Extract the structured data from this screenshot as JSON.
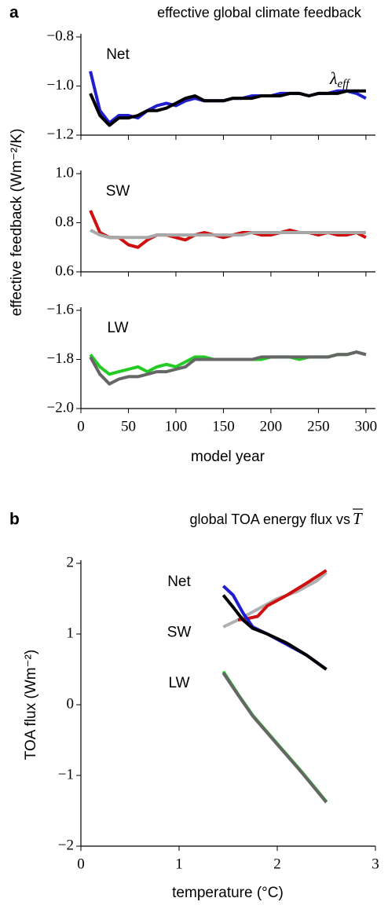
{
  "chart_data": [
    {
      "type": "line",
      "panel": "a",
      "title": "effective global climate feedback",
      "label": "Net",
      "annotation": "λ",
      "annotation_subscript": "eff",
      "x": [
        10,
        20,
        30,
        40,
        50,
        60,
        70,
        80,
        90,
        100,
        110,
        120,
        130,
        140,
        150,
        160,
        170,
        180,
        190,
        200,
        210,
        220,
        230,
        240,
        250,
        260,
        270,
        280,
        290,
        300
      ],
      "ylim": [
        -1.2,
        -0.8
      ],
      "yticks": [
        {
          "value": -1.2,
          "label": "−1.2"
        },
        {
          "value": -1.0,
          "label": "−1.0"
        },
        {
          "value": -0.8,
          "label": "−0.8"
        }
      ],
      "series": [
        {
          "color": "#1f1fd0",
          "values": [
            -0.94,
            -1.1,
            -1.15,
            -1.12,
            -1.12,
            -1.13,
            -1.1,
            -1.08,
            -1.07,
            -1.08,
            -1.06,
            -1.05,
            -1.06,
            -1.06,
            -1.06,
            -1.05,
            -1.05,
            -1.04,
            -1.04,
            -1.04,
            -1.03,
            -1.03,
            -1.03,
            -1.04,
            -1.03,
            -1.03,
            -1.02,
            -1.02,
            -1.03,
            -1.05
          ]
        },
        {
          "color": "#000000",
          "values": [
            -1.03,
            -1.12,
            -1.16,
            -1.13,
            -1.13,
            -1.12,
            -1.1,
            -1.1,
            -1.09,
            -1.07,
            -1.05,
            -1.04,
            -1.06,
            -1.06,
            -1.06,
            -1.05,
            -1.05,
            -1.05,
            -1.04,
            -1.04,
            -1.04,
            -1.03,
            -1.03,
            -1.04,
            -1.03,
            -1.03,
            -1.03,
            -1.02,
            -1.02,
            -1.02
          ]
        }
      ]
    },
    {
      "type": "line",
      "label": "SW",
      "ylabel": "effective feedback (Wm⁻²/K)",
      "x": [
        10,
        20,
        30,
        40,
        50,
        60,
        70,
        80,
        90,
        100,
        110,
        120,
        130,
        140,
        150,
        160,
        170,
        180,
        190,
        200,
        210,
        220,
        230,
        240,
        250,
        260,
        270,
        280,
        290,
        300
      ],
      "ylim": [
        0.6,
        1.0
      ],
      "yticks": [
        0.6,
        0.8,
        {
          "value": 1.0,
          "label": "1.0"
        }
      ],
      "series": [
        {
          "color": "#d01010",
          "values": [
            0.85,
            0.76,
            0.74,
            0.74,
            0.71,
            0.7,
            0.73,
            0.75,
            0.75,
            0.74,
            0.73,
            0.75,
            0.76,
            0.75,
            0.74,
            0.75,
            0.76,
            0.76,
            0.75,
            0.75,
            0.76,
            0.77,
            0.76,
            0.76,
            0.75,
            0.76,
            0.75,
            0.75,
            0.76,
            0.74
          ]
        },
        {
          "color": "#a8a8a8",
          "values": [
            0.77,
            0.75,
            0.74,
            0.74,
            0.74,
            0.74,
            0.74,
            0.75,
            0.75,
            0.75,
            0.75,
            0.75,
            0.75,
            0.75,
            0.75,
            0.75,
            0.75,
            0.76,
            0.76,
            0.76,
            0.76,
            0.76,
            0.76,
            0.76,
            0.76,
            0.76,
            0.76,
            0.76,
            0.76,
            0.76
          ]
        }
      ]
    },
    {
      "type": "line",
      "label": "LW",
      "xlabel": "model year",
      "x": [
        10,
        20,
        30,
        40,
        50,
        60,
        70,
        80,
        90,
        100,
        110,
        120,
        130,
        140,
        150,
        160,
        170,
        180,
        190,
        200,
        210,
        220,
        230,
        240,
        250,
        260,
        270,
        280,
        290,
        300
      ],
      "xlim": [
        0,
        310
      ],
      "xticks": [
        0,
        50,
        100,
        150,
        200,
        250,
        300
      ],
      "ylim": [
        -2.0,
        -1.6
      ],
      "yticks": [
        {
          "value": -2.0,
          "label": "−2.0"
        },
        {
          "value": -1.8,
          "label": "−1.8"
        },
        {
          "value": -1.6,
          "label": "−1.6"
        }
      ],
      "series": [
        {
          "color": "#22cc22",
          "values": [
            -1.78,
            -1.83,
            -1.86,
            -1.85,
            -1.84,
            -1.83,
            -1.85,
            -1.83,
            -1.82,
            -1.83,
            -1.81,
            -1.79,
            -1.79,
            -1.8,
            -1.8,
            -1.8,
            -1.8,
            -1.8,
            -1.8,
            -1.79,
            -1.79,
            -1.79,
            -1.8,
            -1.79,
            -1.79,
            -1.79,
            -1.78,
            -1.78,
            -1.77,
            -1.78
          ]
        },
        {
          "color": "#666666",
          "values": [
            -1.79,
            -1.86,
            -1.9,
            -1.88,
            -1.87,
            -1.87,
            -1.86,
            -1.85,
            -1.85,
            -1.84,
            -1.83,
            -1.8,
            -1.8,
            -1.8,
            -1.8,
            -1.8,
            -1.8,
            -1.8,
            -1.79,
            -1.79,
            -1.79,
            -1.79,
            -1.79,
            -1.79,
            -1.79,
            -1.79,
            -1.78,
            -1.78,
            -1.77,
            -1.78
          ]
        }
      ]
    },
    {
      "type": "line",
      "panel": "b",
      "title": "global TOA energy flux vs",
      "title_symbol": "T",
      "xlabel": "temperature (°C)",
      "ylabel": "TOA flux (Wm⁻²)",
      "xlim": [
        0,
        3
      ],
      "xticks": [
        0,
        1,
        2,
        3
      ],
      "ylim": [
        -2,
        2
      ],
      "yticks": [
        {
          "value": -2,
          "label": "−2"
        },
        {
          "value": -1,
          "label": "−1"
        },
        0,
        1,
        2
      ],
      "labels": [
        "Net",
        "SW",
        "LW"
      ],
      "series": [
        {
          "color": "#b0b0b0",
          "x": [
            1.45,
            1.6,
            1.8,
            2.0,
            2.2,
            2.4,
            2.5
          ],
          "values": [
            1.1,
            1.2,
            1.35,
            1.5,
            1.6,
            1.75,
            1.87
          ]
        },
        {
          "color": "#d01010",
          "x": [
            1.6,
            1.7,
            1.8,
            1.9,
            2.1,
            2.3,
            2.5
          ],
          "values": [
            1.2,
            1.22,
            1.25,
            1.4,
            1.55,
            1.72,
            1.9
          ]
        },
        {
          "color": "#1f1fd0",
          "x": [
            1.45,
            1.55,
            1.65,
            1.75,
            1.9,
            2.1,
            2.3,
            2.5
          ],
          "values": [
            1.68,
            1.55,
            1.3,
            1.1,
            1.0,
            0.85,
            0.7,
            0.5
          ]
        },
        {
          "color": "#000000",
          "x": [
            1.45,
            1.55,
            1.65,
            1.75,
            1.9,
            2.1,
            2.3,
            2.5
          ],
          "values": [
            1.55,
            1.38,
            1.2,
            1.08,
            1.0,
            0.87,
            0.7,
            0.5
          ]
        },
        {
          "color": "#22cc22",
          "x": [
            1.45,
            1.6,
            1.75,
            2.0,
            2.25,
            2.5
          ],
          "values": [
            0.47,
            0.15,
            -0.15,
            -0.55,
            -0.95,
            -1.37
          ]
        },
        {
          "color": "#666666",
          "x": [
            1.45,
            1.6,
            1.75,
            2.0,
            2.25,
            2.5
          ],
          "values": [
            0.45,
            0.14,
            -0.16,
            -0.56,
            -0.96,
            -1.38
          ]
        }
      ]
    }
  ]
}
